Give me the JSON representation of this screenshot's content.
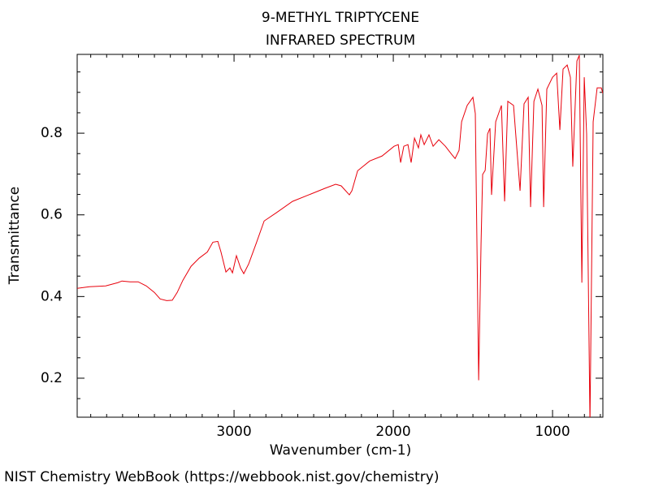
{
  "chart_data": {
    "type": "line",
    "title": "9-METHYL TRIPTYCENE",
    "subtitle": "INFRARED SPECTRUM",
    "x_label": "Wavenumber (cm-1)",
    "y_label": "Transmittance",
    "source": "NIST Chemistry WebBook (https://webbook.nist.gov/chemistry)",
    "xlim": [
      3985,
      684
    ],
    "ylim": [
      0.1045,
      0.993
    ],
    "xticks": [
      3000,
      2000,
      1000
    ],
    "xticks_minor": [
      3900,
      3800,
      3700,
      3600,
      3500,
      3400,
      3300,
      3200,
      3100,
      2900,
      2800,
      2700,
      2600,
      2500,
      2400,
      2300,
      2200,
      2100,
      1900,
      1800,
      1700,
      1600,
      1500,
      1400,
      1300,
      1200,
      1100,
      900,
      800,
      700
    ],
    "yticks": [
      0.2,
      0.4,
      0.6,
      0.8
    ],
    "yticks_minor": [
      0.15,
      0.25,
      0.3,
      0.35,
      0.45,
      0.5,
      0.55,
      0.65,
      0.7,
      0.75,
      0.85,
      0.9,
      0.95
    ],
    "series": [
      {
        "color": "#e8000b",
        "x": [
          3985,
          3908,
          3806,
          3730,
          3704,
          3653,
          3602,
          3551,
          3500,
          3464,
          3423,
          3388,
          3357,
          3321,
          3270,
          3219,
          3168,
          3133,
          3102,
          3082,
          3051,
          3026,
          3010,
          2985,
          2959,
          2939,
          2908,
          2862,
          2811,
          2735,
          2633,
          2531,
          2429,
          2362,
          2327,
          2276,
          2260,
          2224,
          2148,
          2071,
          1995,
          1969,
          1954,
          1934,
          1908,
          1888,
          1867,
          1842,
          1827,
          1806,
          1776,
          1750,
          1714,
          1673,
          1633,
          1612,
          1587,
          1571,
          1536,
          1500,
          1485,
          1464,
          1449,
          1439,
          1423,
          1408,
          1393,
          1383,
          1357,
          1321,
          1301,
          1281,
          1245,
          1204,
          1179,
          1153,
          1138,
          1117,
          1092,
          1066,
          1056,
          1036,
          1000,
          974,
          954,
          934,
          908,
          888,
          873,
          847,
          832,
          816,
          801,
          786,
          765,
          745,
          720,
          694,
          684
        ],
        "values": [
          0.42,
          0.424,
          0.426,
          0.434,
          0.438,
          0.436,
          0.436,
          0.426,
          0.41,
          0.394,
          0.39,
          0.391,
          0.41,
          0.44,
          0.474,
          0.494,
          0.509,
          0.533,
          0.535,
          0.509,
          0.46,
          0.47,
          0.458,
          0.5,
          0.47,
          0.456,
          0.48,
          0.529,
          0.585,
          0.605,
          0.633,
          0.649,
          0.665,
          0.675,
          0.671,
          0.649,
          0.659,
          0.708,
          0.732,
          0.744,
          0.768,
          0.772,
          0.728,
          0.768,
          0.772,
          0.728,
          0.788,
          0.764,
          0.796,
          0.772,
          0.796,
          0.768,
          0.784,
          0.768,
          0.748,
          0.738,
          0.758,
          0.828,
          0.868,
          0.888,
          0.848,
          0.195,
          0.529,
          0.699,
          0.709,
          0.798,
          0.812,
          0.649,
          0.828,
          0.868,
          0.633,
          0.878,
          0.868,
          0.659,
          0.872,
          0.888,
          0.619,
          0.878,
          0.908,
          0.868,
          0.619,
          0.908,
          0.937,
          0.947,
          0.808,
          0.957,
          0.967,
          0.937,
          0.718,
          0.977,
          0.991,
          0.434,
          0.937,
          0.798,
          0.09,
          0.828,
          0.911,
          0.911,
          0.897
        ]
      }
    ]
  }
}
